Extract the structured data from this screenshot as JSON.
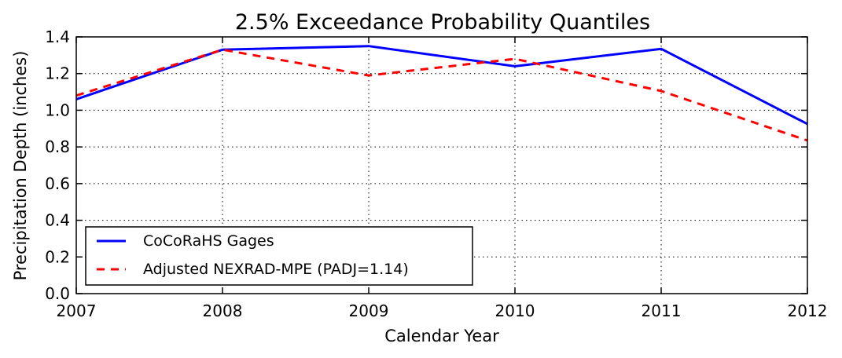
{
  "chart_data": {
    "type": "line",
    "title": "2.5% Exceedance Probability Quantiles",
    "xlabel": "Calendar Year",
    "ylabel": "Precipitation Depth (inches)",
    "xlim": [
      2007,
      2012
    ],
    "ylim": [
      0.0,
      1.4
    ],
    "xticks": [
      "2007",
      "2008",
      "2009",
      "2010",
      "2011",
      "2012"
    ],
    "yticks": [
      "0.0",
      "0.2",
      "0.4",
      "0.6",
      "0.8",
      "1.0",
      "1.2",
      "1.4"
    ],
    "grid": true,
    "legend_position": "lower-left",
    "x": [
      2007,
      2008,
      2009,
      2010,
      2011,
      2012
    ],
    "series": [
      {
        "name": "CoCoRaHS Gages",
        "values": [
          1.06,
          1.33,
          1.35,
          1.24,
          1.335,
          0.925
        ],
        "color": "#0000ff",
        "style": "solid"
      },
      {
        "name": "Adjusted NEXRAD-MPE (PADJ=1.14)",
        "values": [
          1.08,
          1.33,
          1.19,
          1.28,
          1.105,
          0.835
        ],
        "color": "#ff0000",
        "style": "dashed"
      }
    ]
  }
}
